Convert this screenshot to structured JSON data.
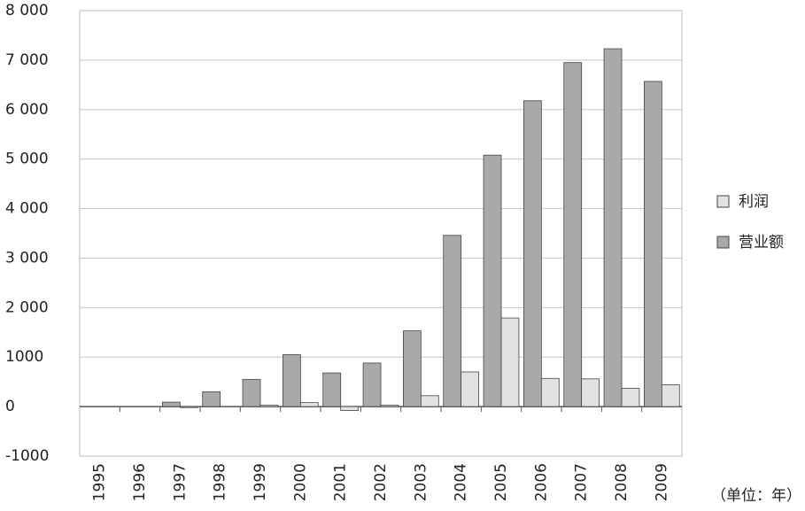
{
  "chart_data": {
    "type": "bar",
    "categories": [
      "1995",
      "1996",
      "1997",
      "1998",
      "1999",
      "2000",
      "2001",
      "2002",
      "2003",
      "2004",
      "2005",
      "2006",
      "2007",
      "2008",
      "2009"
    ],
    "series": [
      {
        "name": "营业额",
        "color": "#a9a9a9",
        "values": [
          0,
          0,
          90,
          300,
          550,
          1050,
          680,
          880,
          1530,
          3460,
          5080,
          6180,
          6950,
          7230,
          6570
        ]
      },
      {
        "name": "利润",
        "color": "#e2e2e2",
        "values": [
          0,
          0,
          -20,
          0,
          30,
          80,
          -80,
          30,
          220,
          700,
          1790,
          570,
          560,
          370,
          440
        ]
      }
    ],
    "legend_order": [
      "利润",
      "营业额"
    ],
    "ylim": [
      -1000,
      8000
    ],
    "yticks": [
      -1000,
      0,
      1000,
      {
        "value": 2000,
        "label": "2 000"
      },
      {
        "value": 3000,
        "label": "3 000"
      },
      {
        "value": 4000,
        "label": "4 000"
      },
      {
        "value": 5000,
        "label": "5 000"
      },
      {
        "value": 6000,
        "label": "6 000"
      },
      {
        "value": 7000,
        "label": "7 000"
      },
      {
        "value": 8000,
        "label": "8 000"
      }
    ],
    "grid": true,
    "legend": "right",
    "unit_note": "（单位：年）"
  }
}
